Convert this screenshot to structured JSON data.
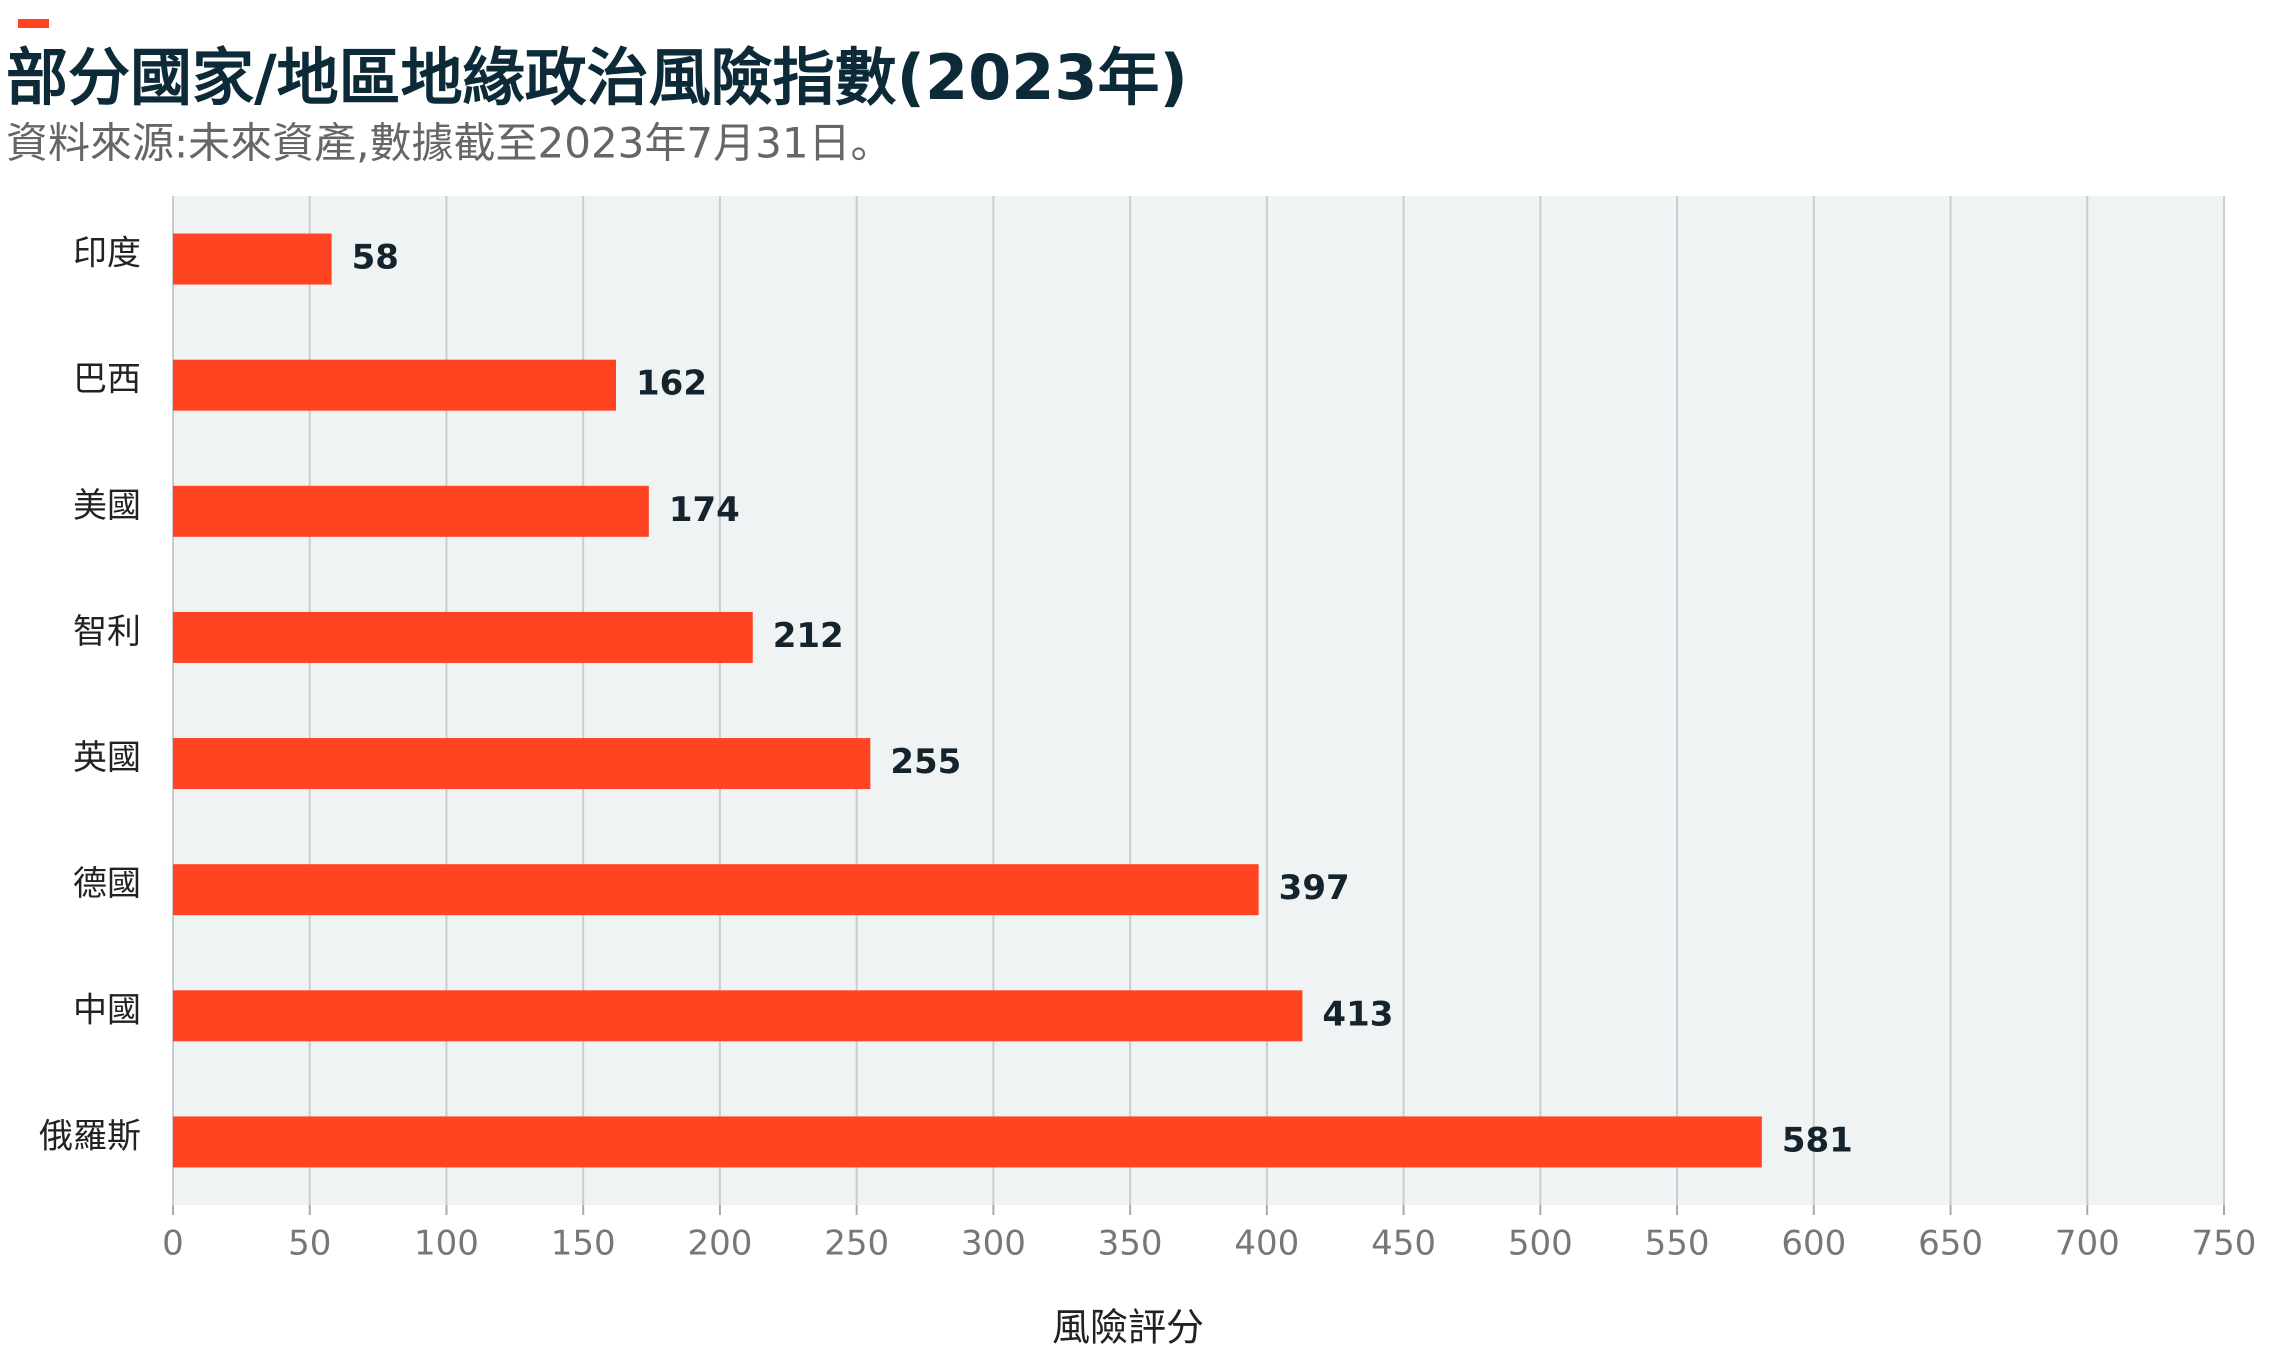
{
  "chart_data": {
    "type": "bar",
    "orientation": "horizontal",
    "title": "部分國家/地區地緣政治風險指數(2023年)",
    "subtitle": "資料來源:未來資產,數據截至2023年7月31日。",
    "categories": [
      "印度",
      "巴西",
      "美國",
      "智利",
      "英國",
      "德國",
      "中國",
      "俄羅斯"
    ],
    "values": [
      58,
      162,
      174,
      212,
      255,
      397,
      413,
      581
    ],
    "color": "#ff4422",
    "xlabel": "風險評分",
    "xlim": [
      0,
      750
    ],
    "xticks": [
      0,
      50,
      100,
      150,
      200,
      250,
      300,
      350,
      400,
      450,
      500,
      550,
      600,
      650,
      700,
      750
    ],
    "grid": true
  }
}
